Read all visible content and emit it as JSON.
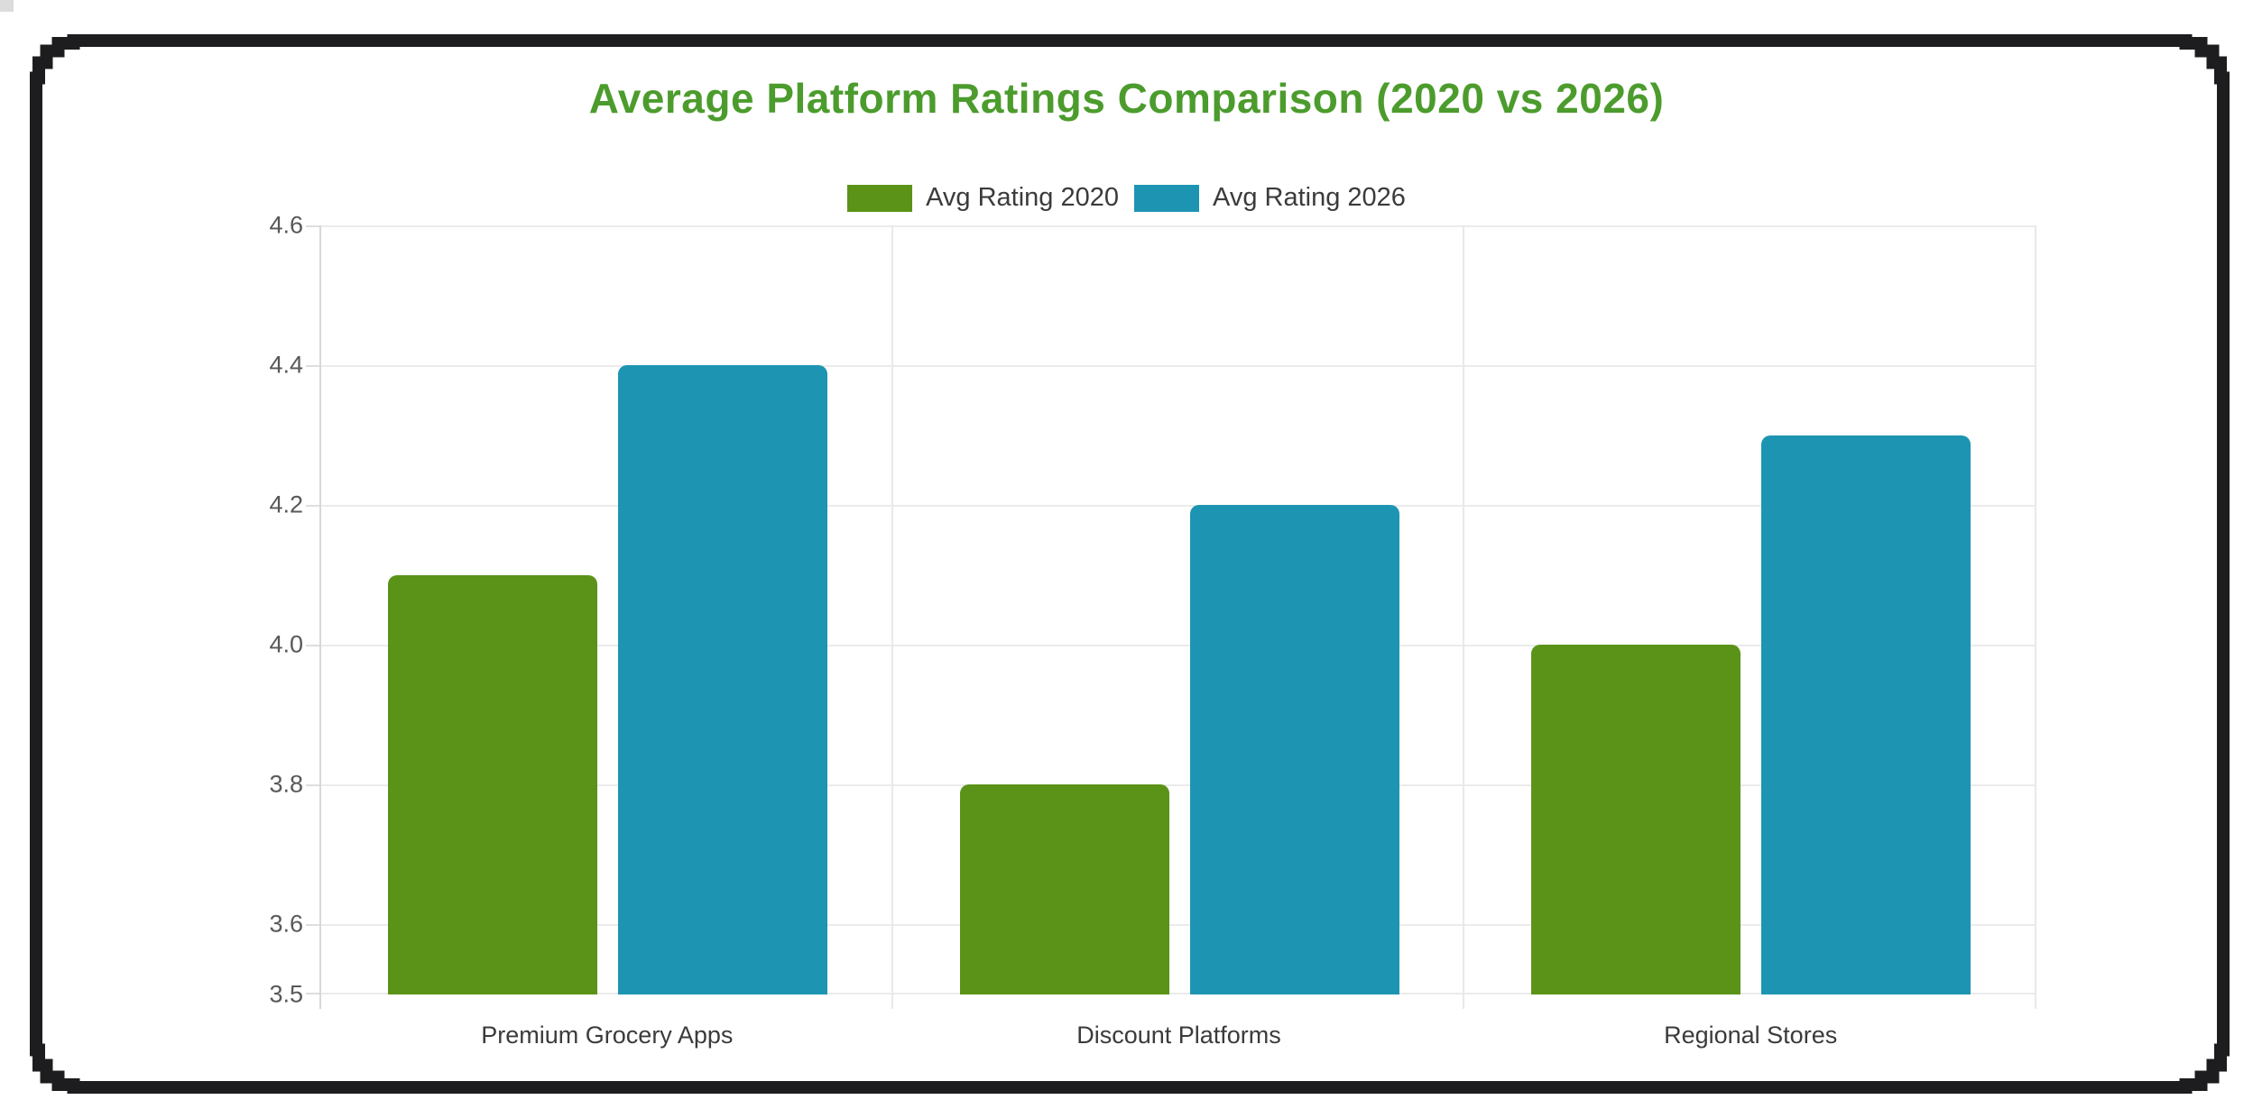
{
  "window": {
    "frame_color": "#1d1d1f",
    "background": "#ffffff"
  },
  "chart_data": {
    "type": "bar",
    "title": "Average Platform Ratings Comparison (2020 vs 2026)",
    "title_color": "#4c9c2d",
    "categories": [
      "Premium Grocery Apps",
      "Discount Platforms",
      "Regional Stores"
    ],
    "series": [
      {
        "name": "Avg Rating 2020",
        "color": "#5b9318",
        "values": [
          4.1,
          3.8,
          4.0
        ]
      },
      {
        "name": "Avg Rating 2026",
        "color": "#1d95b2",
        "values": [
          4.4,
          4.2,
          4.3
        ]
      }
    ],
    "ylim": [
      3.5,
      4.6
    ],
    "yticks": [
      4.6,
      4.4,
      4.2,
      4.0,
      3.8,
      3.6,
      3.5
    ],
    "ytick_decimals": 1,
    "grid": true,
    "legend_position": "top",
    "colors": {
      "gridline": "#ebebeb",
      "axis_line": "#d8d8d8",
      "tick_mark": "#dedede",
      "separator": "#e9e9e9",
      "ytick_text": "#58585a",
      "category_text": "#3b3b3b",
      "legend_text": "#3b3b3b"
    }
  }
}
